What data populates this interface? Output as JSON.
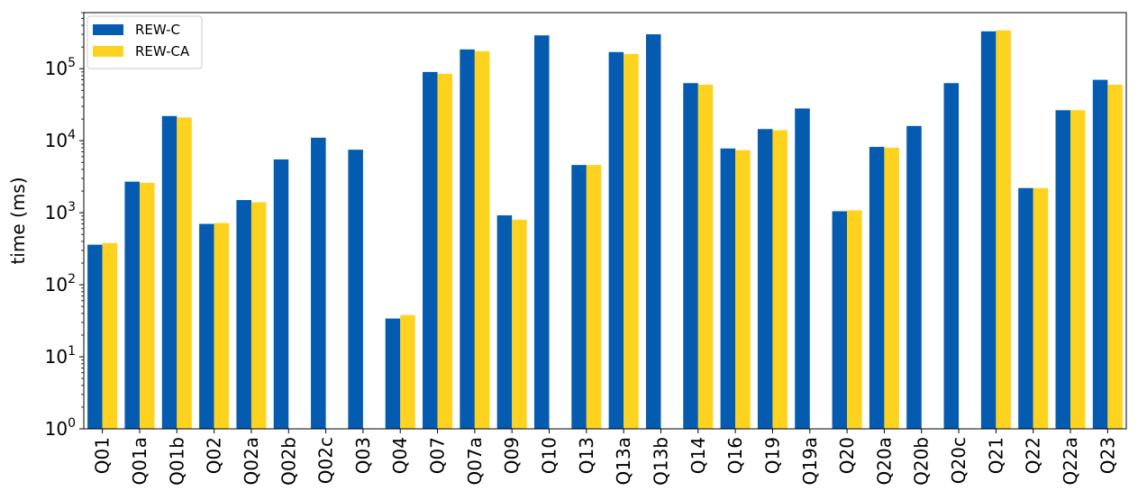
{
  "chart_data": {
    "type": "bar",
    "title": "",
    "xlabel": "",
    "ylabel": "time (ms)",
    "yscale": "log",
    "ylim": [
      1,
      600000
    ],
    "grid": false,
    "legend_position": "top-left",
    "categories": [
      "Q01",
      "Q01a",
      "Q01b",
      "Q02",
      "Q02a",
      "Q02b",
      "Q02c",
      "Q03",
      "Q04",
      "Q07",
      "Q07a",
      "Q09",
      "Q10",
      "Q13",
      "Q13a",
      "Q13b",
      "Q14",
      "Q16",
      "Q19",
      "Q19a",
      "Q20",
      "Q20a",
      "Q20b",
      "Q20c",
      "Q21",
      "Q22",
      "Q22a",
      "Q23"
    ],
    "y_ticks": [
      {
        "value": 1,
        "base": "10",
        "exp": "0"
      },
      {
        "value": 10,
        "base": "10",
        "exp": "1"
      },
      {
        "value": 100,
        "base": "10",
        "exp": "2"
      },
      {
        "value": 1000,
        "base": "10",
        "exp": "3"
      },
      {
        "value": 10000,
        "base": "10",
        "exp": "4"
      },
      {
        "value": 100000,
        "base": "10",
        "exp": "5"
      }
    ],
    "series": [
      {
        "name": "REW-C",
        "color": "#045BB0",
        "values": [
          360,
          2700,
          22000,
          700,
          1500,
          5500,
          11000,
          7500,
          34,
          90000,
          185000,
          920,
          290000,
          4600,
          170000,
          300000,
          63000,
          7800,
          14500,
          28000,
          1050,
          8200,
          16000,
          63000,
          330000,
          2200,
          26500,
          70000
        ]
      },
      {
        "name": "REW-CA",
        "color": "#FED320",
        "values": [
          380,
          2600,
          21000,
          720,
          1400,
          null,
          null,
          null,
          38,
          85000,
          175000,
          800,
          null,
          4600,
          160000,
          null,
          60000,
          7400,
          14000,
          null,
          1080,
          8000,
          null,
          null,
          340000,
          2200,
          26500,
          60000
        ]
      }
    ]
  }
}
